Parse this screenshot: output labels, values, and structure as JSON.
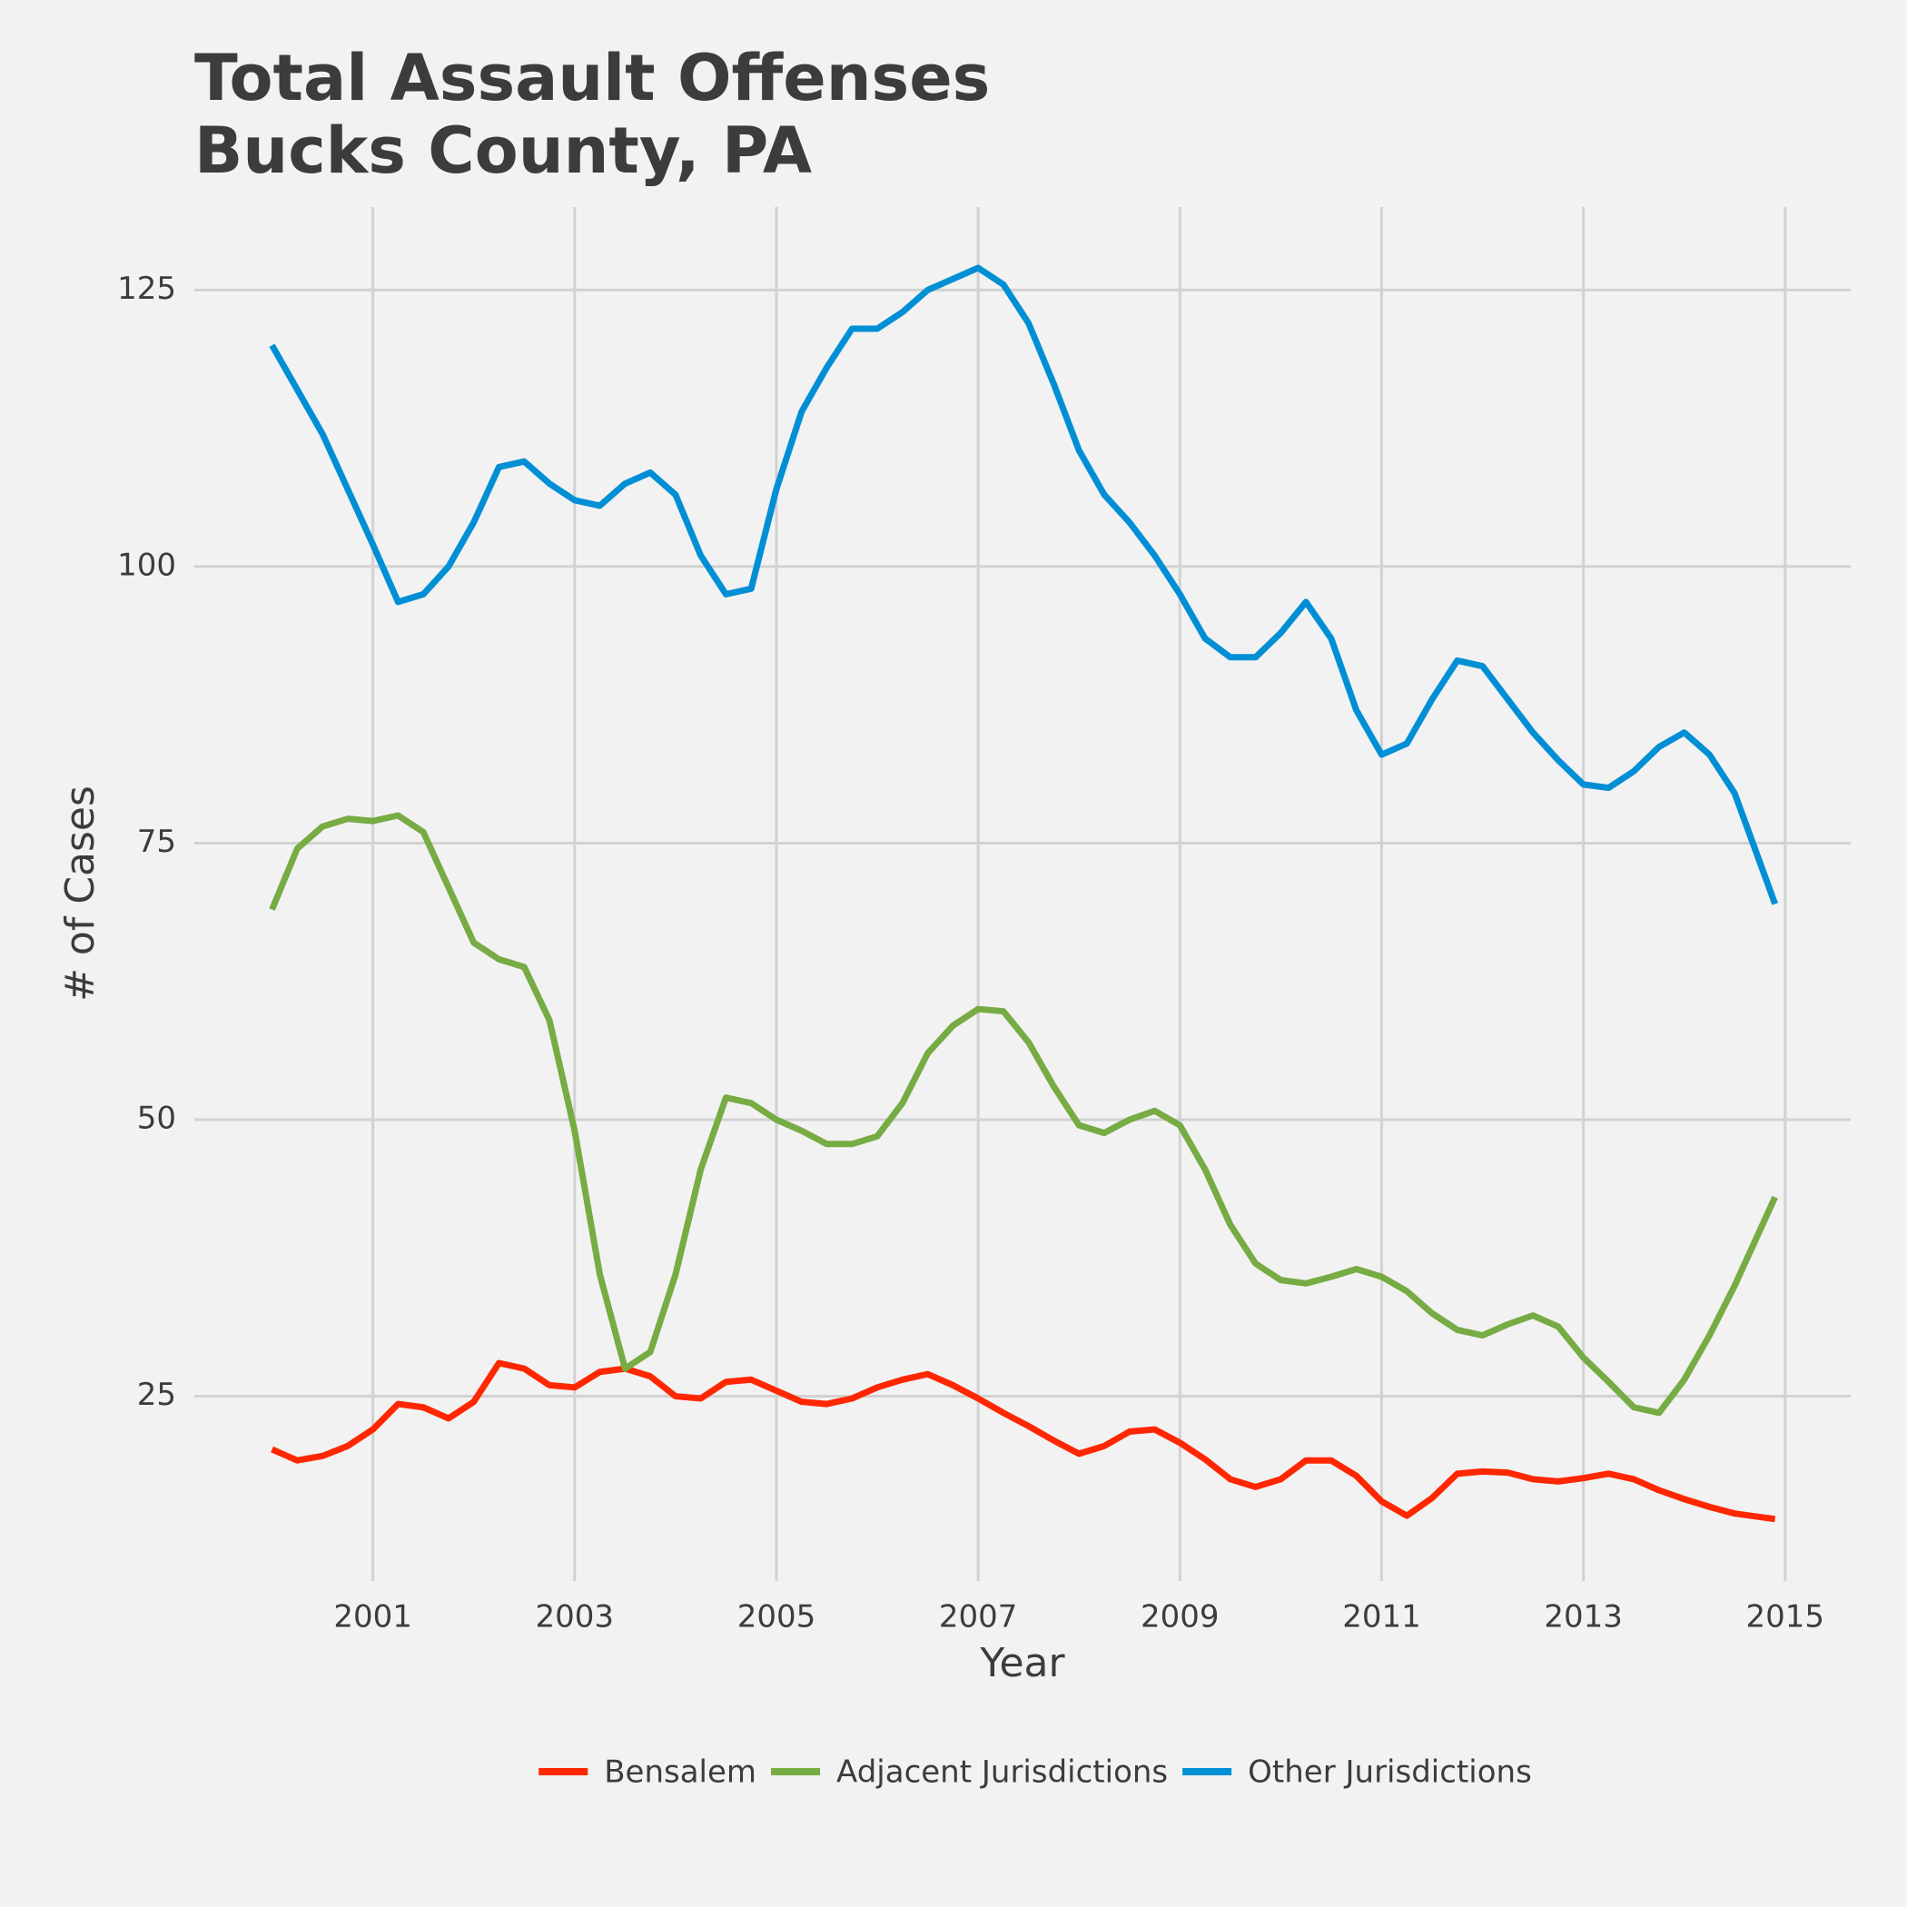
{
  "chart_data": {
    "type": "line",
    "title": [
      "Total Assault Offenses",
      "Bucks County, PA"
    ],
    "x_label": "Year",
    "y_label": "# of Cases",
    "x": [
      2000,
      2000.25,
      2000.5,
      2000.75,
      2001,
      2001.25,
      2001.5,
      2001.75,
      2002,
      2002.25,
      2002.5,
      2002.75,
      2003,
      2003.25,
      2003.5,
      2003.75,
      2004,
      2004.25,
      2004.5,
      2004.75,
      2005,
      2005.25,
      2005.5,
      2005.75,
      2006,
      2006.25,
      2006.5,
      2006.75,
      2007,
      2007.25,
      2007.5,
      2007.75,
      2008,
      2008.25,
      2008.5,
      2008.75,
      2009,
      2009.25,
      2009.5,
      2009.75,
      2010,
      2010.25,
      2010.5,
      2010.75,
      2011,
      2011.25,
      2011.5,
      2011.75,
      2012,
      2012.25,
      2012.5,
      2012.75,
      2013,
      2013.25,
      2013.5,
      2013.75,
      2014,
      2014.25,
      2014.5,
      2014.9
    ],
    "series": [
      {
        "name": "Bensalem",
        "color": "#ff2700",
        "values": [
          20.2,
          19.2,
          19.6,
          20.5,
          22,
          24.3,
          24,
          23,
          24.5,
          28,
          27.5,
          26,
          25.8,
          27.2,
          27.5,
          26.8,
          25,
          24.8,
          26.3,
          26.5,
          25.5,
          24.5,
          24.3,
          24.8,
          25.8,
          26.5,
          27,
          26,
          24.8,
          23.5,
          22.3,
          21,
          19.8,
          20.5,
          21.8,
          22,
          20.8,
          19.3,
          17.5,
          16.8,
          17.5,
          19.2,
          19.2,
          17.8,
          15.5,
          14.2,
          15.8,
          18,
          18.2,
          18.1,
          17.5,
          17.3,
          17.6,
          18,
          17.5,
          16.5,
          15.7,
          15,
          14.4,
          13.9
        ]
      },
      {
        "name": "Adjacent Jurisdictions",
        "color": "#77ab43",
        "values": [
          69,
          74.5,
          76.5,
          77.2,
          77,
          77.5,
          76,
          71,
          66,
          64.5,
          63.8,
          59,
          49,
          36,
          27.5,
          29,
          36,
          45.5,
          52,
          51.5,
          50,
          49,
          47.8,
          47.8,
          48.5,
          51.5,
          56,
          58.5,
          60,
          59.8,
          57,
          53,
          49.5,
          48.8,
          50,
          50.8,
          49.5,
          45.5,
          40.5,
          37,
          35.5,
          35.2,
          35.8,
          36.5,
          35.8,
          34.5,
          32.5,
          31,
          30.5,
          31.5,
          32.3,
          31.3,
          28.5,
          26.3,
          24,
          23.5,
          26.5,
          30.5,
          35,
          43
        ]
      },
      {
        "name": "Other Jurisdictions",
        "color": "#008fd5",
        "values": [
          120,
          116,
          112,
          107,
          102,
          96.8,
          97.5,
          100,
          104,
          109,
          109.5,
          107.5,
          106,
          105.5,
          107.5,
          108.5,
          106.5,
          101,
          97.5,
          98,
          107,
          114,
          118,
          121.5,
          121.5,
          123,
          125,
          126,
          127,
          125.5,
          122,
          116.5,
          110.5,
          106.5,
          104,
          101,
          97.5,
          93.5,
          91.8,
          91.8,
          94,
          96.8,
          93.5,
          87,
          83,
          84,
          88,
          91.5,
          91,
          88,
          85,
          82.5,
          80.3,
          80,
          81.5,
          83.7,
          85,
          83,
          79.5,
          69.5
        ]
      }
    ],
    "xlim": [
      1999.23,
      2015.65
    ],
    "xticks": [
      2001,
      2003,
      2005,
      2007,
      2009,
      2011,
      2013,
      2015
    ],
    "ylim": [
      8.3,
      132.5
    ],
    "yticks": [
      25,
      50,
      75,
      100,
      125
    ],
    "grid": true,
    "legend": "bottom"
  }
}
